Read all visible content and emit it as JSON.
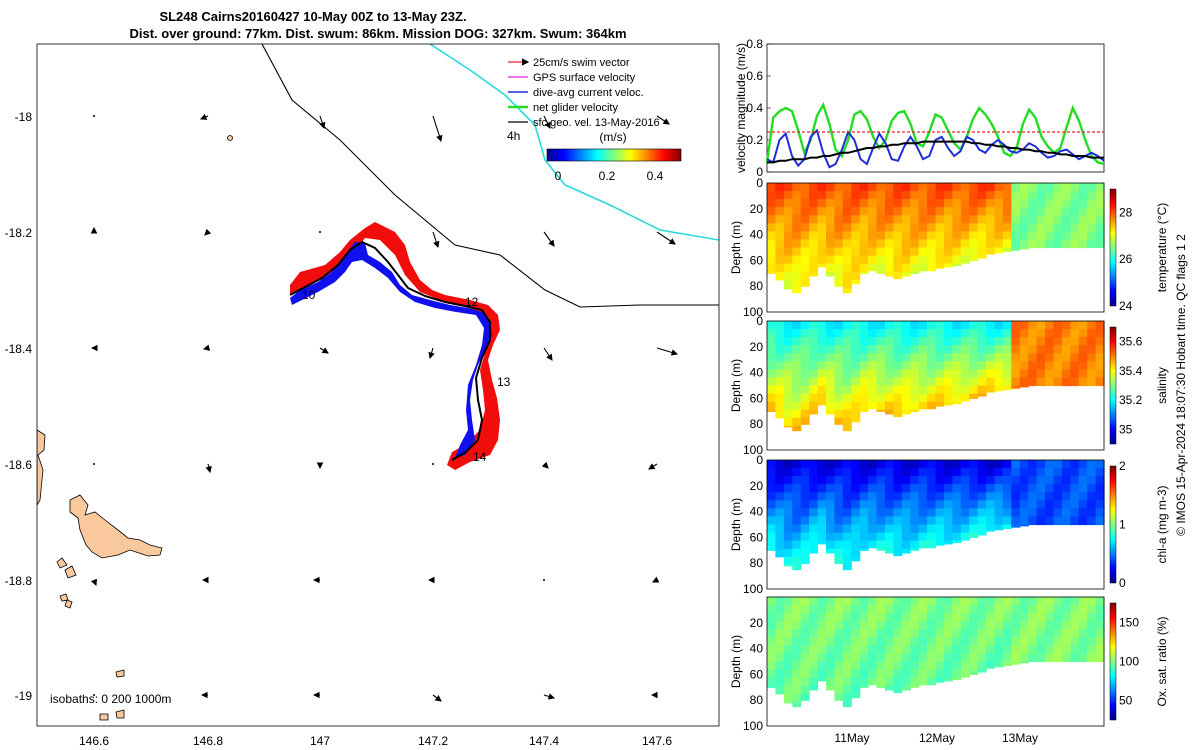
{
  "title": {
    "line1": "SL248 Cairns20160427 10-May 00Z to 13-May 23Z.",
    "line2": "Dist. over ground: 77km. Dist. swum: 86km. Mission DOG: 327km. Swum: 364km"
  },
  "map": {
    "x_ticks": [
      "146.6",
      "146.8",
      "147",
      "147.2",
      "147.4",
      "147.6"
    ],
    "y_ticks": [
      "-18",
      "-18.2",
      "-18.4",
      "-18.6",
      "-18.8",
      "-19"
    ],
    "day_labels": [
      "10",
      "12",
      "13",
      "14"
    ],
    "isobaths_label": "isobaths: 0   200  1000m",
    "legend": [
      {
        "label": "25cm/s swim vector",
        "color": "#e8202a"
      },
      {
        "label": "GPS surface velocity",
        "color": "#e020e0"
      },
      {
        "label": "dive-avg current veloc.",
        "color": "#1f2fd8"
      },
      {
        "label": "net glider velocity",
        "color": "#22dd22"
      },
      {
        "label": "sfc geo. vel. 13-May-2016",
        "color": "#000000"
      }
    ],
    "time_label": "4h",
    "colorbar": {
      "unit": "(m/s)",
      "ticks": [
        "0",
        "0.2",
        "0.4"
      ]
    },
    "colors": {
      "land": "#f9c89d",
      "track_red": "#f20d0d",
      "track_blue": "#1010ee",
      "isobath_cyan": "#27d9e0"
    }
  },
  "chart_data": [
    {
      "type": "line",
      "ylabel": "velocity magnitude (m/s)",
      "ylim": [
        0,
        0.8
      ],
      "y_ticks": [
        "0",
        "0.2",
        "0.4",
        "0.6",
        "0.8"
      ],
      "series": [
        {
          "name": "net glider velocity",
          "color": "#22dd22",
          "values": [
            0.06,
            0.34,
            0.38,
            0.4,
            0.38,
            0.26,
            0.12,
            0.2,
            0.35,
            0.42,
            0.3,
            0.14,
            0.1,
            0.2,
            0.36,
            0.38,
            0.33,
            0.22,
            0.15,
            0.2,
            0.32,
            0.37,
            0.38,
            0.3,
            0.18,
            0.16,
            0.25,
            0.36,
            0.34,
            0.26,
            0.18,
            0.14,
            0.22,
            0.33,
            0.4,
            0.36,
            0.3,
            0.22,
            0.12,
            0.1,
            0.15,
            0.3,
            0.39,
            0.34,
            0.22,
            0.16,
            0.12,
            0.15,
            0.28,
            0.4,
            0.32,
            0.2,
            0.1,
            0.06,
            0.05
          ]
        },
        {
          "name": "dive-avg current veloc.",
          "color": "#1f2fd8",
          "values": [
            0.08,
            0.06,
            0.2,
            0.24,
            0.1,
            0.04,
            0.08,
            0.22,
            0.26,
            0.12,
            0.03,
            0.05,
            0.14,
            0.25,
            0.2,
            0.08,
            0.05,
            0.15,
            0.24,
            0.18,
            0.08,
            0.07,
            0.16,
            0.22,
            0.16,
            0.08,
            0.1,
            0.2,
            0.22,
            0.15,
            0.1,
            0.13,
            0.22,
            0.2,
            0.14,
            0.12,
            0.17,
            0.2,
            0.17,
            0.13,
            0.12,
            0.14,
            0.18,
            0.16,
            0.12,
            0.09,
            0.1,
            0.13,
            0.14,
            0.11,
            0.08,
            0.1,
            0.12,
            0.1,
            0.07
          ]
        },
        {
          "name": "sfc geo. vel.",
          "color": "#000000",
          "values": [
            0.06,
            0.06,
            0.07,
            0.07,
            0.08,
            0.08,
            0.08,
            0.09,
            0.09,
            0.1,
            0.1,
            0.11,
            0.12,
            0.12,
            0.13,
            0.14,
            0.15,
            0.15,
            0.16,
            0.16,
            0.17,
            0.17,
            0.18,
            0.18,
            0.18,
            0.19,
            0.19,
            0.19,
            0.19,
            0.19,
            0.19,
            0.19,
            0.19,
            0.18,
            0.18,
            0.17,
            0.17,
            0.16,
            0.16,
            0.15,
            0.15,
            0.14,
            0.14,
            0.13,
            0.13,
            0.12,
            0.12,
            0.11,
            0.11,
            0.1,
            0.1,
            0.1,
            0.09,
            0.09,
            0.09
          ]
        },
        {
          "name": "25cm/s swim vector",
          "color": "#e8202a",
          "values": [
            0.25,
            0.25
          ]
        }
      ]
    },
    {
      "type": "heatmap",
      "variable": "temperature",
      "colorbar_label": "temperature (°C)",
      "ylabel": "Depth (m)",
      "ylim": [
        100,
        0
      ],
      "y_ticks": [
        "0",
        "20",
        "40",
        "60",
        "80",
        "100"
      ],
      "clim": [
        24,
        29
      ],
      "cb_ticks": [
        "24",
        "26",
        "28"
      ],
      "surface_value": 28.0,
      "deep_value": 27.0,
      "late_value": 26.5
    },
    {
      "type": "heatmap",
      "variable": "salinity",
      "colorbar_label": "salinity",
      "ylabel": "Depth (m)",
      "ylim": [
        100,
        0
      ],
      "y_ticks": [
        "0",
        "20",
        "40",
        "60",
        "80",
        "100"
      ],
      "clim": [
        34.9,
        35.7
      ],
      "cb_ticks": [
        "35",
        "35.2",
        "35.4",
        "35.6"
      ],
      "surface_value": 35.2,
      "deep_value": 35.45,
      "late_value": 35.5
    },
    {
      "type": "heatmap",
      "variable": "chl-a",
      "colorbar_label": "chl-a (mg m-3)",
      "ylabel": "Depth (m)",
      "ylim": [
        100,
        0
      ],
      "y_ticks": [
        "0",
        "20",
        "40",
        "60",
        "80",
        "100"
      ],
      "clim": [
        0,
        2
      ],
      "cb_ticks": [
        "0",
        "1",
        "2"
      ],
      "surface_value": 0.2,
      "deep_value": 0.8,
      "late_value": 0.4
    },
    {
      "type": "heatmap",
      "variable": "oxygen",
      "colorbar_label": "Ox. sat. ratio (%)",
      "ylabel": "Depth (m)",
      "ylim": [
        100,
        0
      ],
      "y_ticks": [
        "20",
        "40",
        "60",
        "80",
        "100"
      ],
      "clim": [
        25,
        175
      ],
      "cb_ticks": [
        "50",
        "100",
        "150"
      ],
      "surface_value": 100,
      "deep_value": 96,
      "late_value": 100,
      "x_ticks": [
        "11May",
        "12May",
        "13May"
      ]
    }
  ],
  "footer": "© IMOS 15-Apr-2024 18:07:30 Hobart time. QC flags 1  2"
}
